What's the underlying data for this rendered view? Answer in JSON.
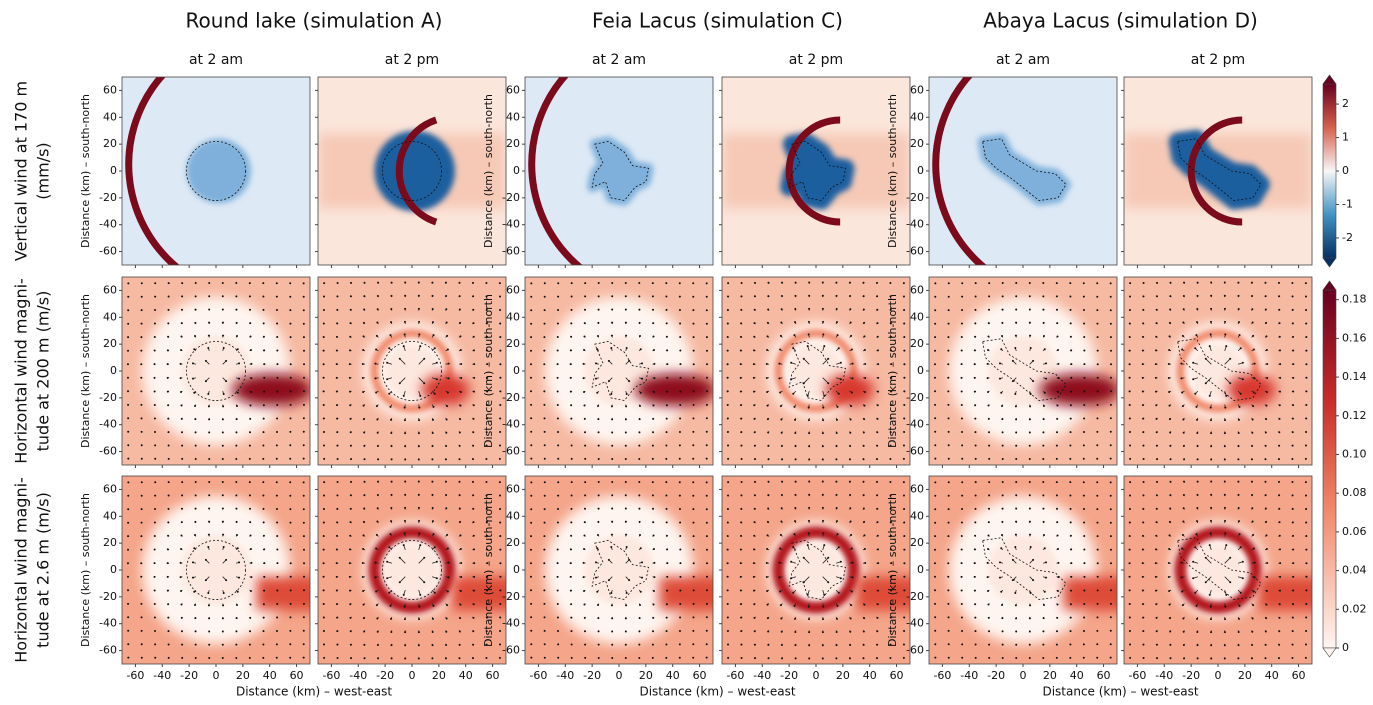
{
  "columns": [
    {
      "title": "Round lake (simulation A)",
      "panels": [
        "at 2 am",
        "at 2 pm"
      ]
    },
    {
      "title": "Feia Lacus (simulation C)",
      "panels": [
        "at 2 am",
        "at 2 pm"
      ]
    },
    {
      "title": "Abaya Lacus (simulation D)",
      "panels": [
        "at 2 am",
        "at 2 pm"
      ]
    }
  ],
  "rows": [
    {
      "label": [
        "Vertical wind at 170 m",
        "(mm/s)"
      ]
    },
    {
      "label": [
        "Horizontal wind magni-",
        "tude at 200 m (m/s)"
      ]
    },
    {
      "label": [
        "Horizontal wind magni-",
        "tude at 2.6 m (m/s)"
      ]
    }
  ],
  "axes": {
    "xlabel": "Distance (km) – west-east",
    "ylabel": "Distance (km) – south-north",
    "lim": [
      -70,
      70
    ],
    "ticks": [
      -60,
      -40,
      -20,
      0,
      20,
      40,
      60
    ]
  },
  "colorbars": [
    {
      "lim": [
        -2.6,
        2.6
      ],
      "ticks": [
        2,
        1,
        0,
        -1,
        -2
      ]
    },
    {
      "lim": [
        0,
        0.185
      ],
      "ticks": [
        0,
        0.02,
        0.04,
        0.06,
        0.08,
        {
          "value": 0.1,
          "label": "0.10"
        },
        0.12,
        0.14,
        0.16,
        0.18
      ]
    }
  ]
}
